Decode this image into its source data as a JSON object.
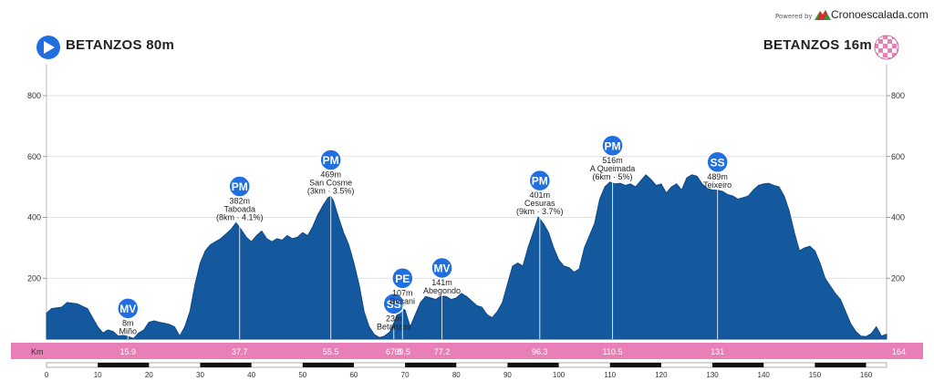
{
  "header": {
    "powered_by": "Powered by",
    "brand": "Cronoescalada.com",
    "start_label": "BETANZOS 80m",
    "finish_label": "BETANZOS 16m"
  },
  "colors": {
    "profile_fill": "#14589e",
    "profile_stroke": "#0d4a86",
    "km_band": "#e87fb6",
    "marker_bg": "#1f6fe0",
    "start_icon": "#1f6fe0",
    "finish_icon": "#e87fb6"
  },
  "chart_data": {
    "type": "area",
    "xlabel": "Km",
    "ylabel": "",
    "xlim": [
      0,
      164
    ],
    "ylim": [
      0,
      800
    ],
    "yticks": [
      200,
      400,
      600,
      800
    ],
    "xticks": [
      0,
      10,
      20,
      30,
      40,
      50,
      60,
      70,
      80,
      90,
      100,
      110,
      120,
      130,
      140,
      150,
      160
    ],
    "grid": true,
    "profile": {
      "x": [
        0,
        1,
        3,
        4,
        5,
        6,
        8,
        9,
        10,
        11,
        12,
        13,
        14,
        15,
        16,
        17,
        18,
        19,
        20,
        21,
        22,
        23,
        24,
        25,
        26,
        27,
        28,
        29,
        30,
        31,
        32,
        33,
        34,
        35,
        36,
        37,
        38,
        39,
        40,
        41,
        42,
        43,
        44,
        45,
        46,
        47,
        48,
        49,
        50,
        51,
        52,
        53,
        54,
        55,
        55.5,
        56,
        57,
        58,
        59,
        60,
        61,
        62,
        63,
        64,
        65,
        66,
        67,
        68,
        69,
        70,
        71,
        72,
        73,
        74,
        75,
        76,
        77,
        78,
        79,
        80,
        81,
        82,
        83,
        84,
        85,
        86,
        87,
        88,
        89,
        90,
        91,
        92,
        93,
        94,
        95,
        96,
        97,
        98,
        99,
        100,
        101,
        102,
        103,
        104,
        105,
        106,
        107,
        108,
        109,
        110,
        111,
        112,
        113,
        114,
        115,
        116,
        117,
        118,
        119,
        120,
        121,
        122,
        123,
        124,
        125,
        126,
        127,
        128,
        129,
        130,
        131,
        132,
        133,
        134,
        135,
        136,
        137,
        138,
        139,
        140,
        141,
        142,
        143,
        144,
        145,
        146,
        147,
        148,
        149,
        150,
        151,
        152,
        153,
        154,
        155,
        156,
        157,
        158,
        159,
        160,
        161,
        162,
        163,
        164
      ],
      "y": [
        85,
        100,
        105,
        120,
        118,
        116,
        100,
        70,
        40,
        20,
        30,
        25,
        10,
        12,
        8,
        2,
        20,
        30,
        55,
        60,
        55,
        52,
        48,
        40,
        10,
        40,
        90,
        180,
        250,
        290,
        310,
        320,
        330,
        345,
        360,
        382,
        360,
        335,
        320,
        340,
        355,
        330,
        320,
        330,
        325,
        340,
        330,
        335,
        350,
        340,
        370,
        410,
        440,
        465,
        469,
        455,
        400,
        350,
        310,
        250,
        180,
        90,
        40,
        15,
        5,
        10,
        23,
        60,
        107,
        95,
        40,
        80,
        120,
        140,
        135,
        130,
        141,
        140,
        130,
        135,
        150,
        140,
        125,
        110,
        105,
        80,
        70,
        90,
        120,
        180,
        240,
        250,
        240,
        300,
        350,
        401,
        380,
        350,
        300,
        260,
        240,
        235,
        220,
        230,
        300,
        340,
        380,
        460,
        500,
        516,
        510,
        512,
        505,
        510,
        500,
        520,
        540,
        525,
        505,
        510,
        480,
        500,
        510,
        490,
        530,
        540,
        535,
        510,
        495,
        490,
        489,
        485,
        475,
        470,
        460,
        465,
        470,
        490,
        505,
        510,
        512,
        505,
        500,
        470,
        420,
        350,
        290,
        300,
        305,
        290,
        250,
        200,
        175,
        150,
        130,
        90,
        50,
        25,
        10,
        8,
        18,
        40,
        10,
        16
      ]
    },
    "km_markers": [
      "15.9",
      "37.7",
      "55.5",
      "67.8",
      "69.5",
      "77.2",
      "96.3",
      "110.5",
      "131",
      "164"
    ],
    "km_marker_values": [
      15.9,
      37.7,
      55.5,
      67.8,
      69.5,
      77.2,
      96.3,
      110.5,
      131,
      164
    ],
    "points": [
      {
        "km": 15.9,
        "badge": "MV",
        "elev": "8m",
        "name": "Miño",
        "detail": "",
        "y": 8
      },
      {
        "km": 37.7,
        "badge": "PM",
        "elev": "382m",
        "name": "Taboada",
        "detail": "(8km · 4.1%)",
        "y": 382
      },
      {
        "km": 55.5,
        "badge": "PM",
        "elev": "469m",
        "name": "San Cosme",
        "detail": "(3km · 3.5%)",
        "y": 469
      },
      {
        "km": 67.8,
        "badge": "SS",
        "elev": "23m",
        "name": "Betanzos",
        "detail": "",
        "y": 23
      },
      {
        "km": 69.5,
        "badge": "PE",
        "elev": "107m",
        "name": "Becani",
        "detail": "",
        "y": 107
      },
      {
        "km": 77.2,
        "badge": "MV",
        "elev": "141m",
        "name": "Abegondo",
        "detail": "",
        "y": 141
      },
      {
        "km": 96.3,
        "badge": "PM",
        "elev": "401m",
        "name": "Cesuras",
        "detail": "(9km · 3.7%)",
        "y": 401
      },
      {
        "km": 110.5,
        "badge": "PM",
        "elev": "516m",
        "name": "A Queimada",
        "detail": "(6km · 5%)",
        "y": 516
      },
      {
        "km": 131,
        "badge": "SS",
        "elev": "489m",
        "name": "Teixeiro",
        "detail": "",
        "y": 489
      }
    ]
  }
}
